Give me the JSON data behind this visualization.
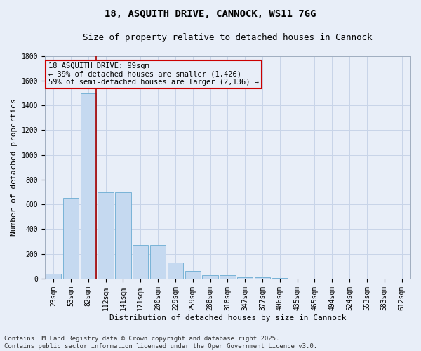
{
  "title_line1": "18, ASQUITH DRIVE, CANNOCK, WS11 7GG",
  "title_line2": "Size of property relative to detached houses in Cannock",
  "xlabel": "Distribution of detached houses by size in Cannock",
  "ylabel": "Number of detached properties",
  "categories": [
    "23sqm",
    "53sqm",
    "82sqm",
    "112sqm",
    "141sqm",
    "171sqm",
    "200sqm",
    "229sqm",
    "259sqm",
    "288sqm",
    "318sqm",
    "347sqm",
    "377sqm",
    "406sqm",
    "435sqm",
    "465sqm",
    "494sqm",
    "524sqm",
    "553sqm",
    "583sqm",
    "612sqm"
  ],
  "values": [
    40,
    650,
    1500,
    700,
    700,
    270,
    270,
    130,
    65,
    30,
    30,
    10,
    10,
    5,
    0,
    0,
    0,
    0,
    0,
    0,
    0
  ],
  "bar_color": "#c5d9f0",
  "bar_edge_color": "#6aabd2",
  "grid_color": "#c8d4e8",
  "background_color": "#e8eef8",
  "vline_x_idx": 2,
  "vline_color": "#aa0000",
  "annotation_text_line1": "18 ASQUITH DRIVE: 99sqm",
  "annotation_text_line2": "← 39% of detached houses are smaller (1,426)",
  "annotation_text_line3": "59% of semi-detached houses are larger (2,136) →",
  "annotation_box_color": "#cc0000",
  "ylim_max": 1800,
  "yticks": [
    0,
    200,
    400,
    600,
    800,
    1000,
    1200,
    1400,
    1600,
    1800
  ],
  "footnote_line1": "Contains HM Land Registry data © Crown copyright and database right 2025.",
  "footnote_line2": "Contains public sector information licensed under the Open Government Licence v3.0.",
  "title_fontsize": 10,
  "subtitle_fontsize": 9,
  "axis_label_fontsize": 8,
  "tick_fontsize": 7,
  "annotation_fontsize": 7.5,
  "footnote_fontsize": 6.5
}
